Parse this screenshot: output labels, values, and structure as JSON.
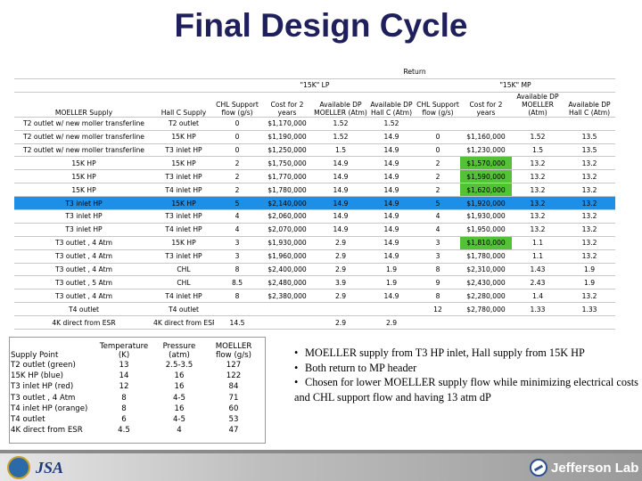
{
  "title": "Final Design Cycle",
  "table": {
    "return_label": "Return",
    "lp_label": "\"15K\" LP",
    "mp_label": "\"15K\" MP",
    "headers": [
      "MOELLER Supply",
      "Hall C Supply",
      "CHL Support flow (g/s)",
      "Cost for 2 years",
      "Available DP MOELLER (Atm)",
      "Available DP Hall C (Atm)",
      "CHL Support flow (g/s)",
      "Cost for 2 years",
      "Available DP MOELLER (Atm)",
      "Available DP Hall C (Atm)"
    ],
    "rows": [
      {
        "cells": [
          "T2 outlet w/ new moller transferline",
          "T2 outlet",
          "0",
          "$1,170,000",
          "1.52",
          "1.52",
          "",
          "",
          "",
          ""
        ]
      },
      {
        "cells": [
          "T2 outlet w/ new moller transferline",
          "15K HP",
          "0",
          "$1,190,000",
          "1.52",
          "14.9",
          "0",
          "$1,160,000",
          "1.52",
          "13.5"
        ]
      },
      {
        "cells": [
          "T2 outlet w/ new moller transferline",
          "T3 inlet HP",
          "0",
          "$1,250,000",
          "1.5",
          "14.9",
          "0",
          "$1,230,000",
          "1.5",
          "13.5"
        ]
      },
      {
        "cells": [
          "15K HP",
          "15K HP",
          "2",
          "$1,750,000",
          "14.9",
          "14.9",
          "2",
          "$1,570,000",
          "13.2",
          "13.2"
        ],
        "green": 7
      },
      {
        "cells": [
          "15K HP",
          "T3 inlet HP",
          "2",
          "$1,770,000",
          "14.9",
          "14.9",
          "2",
          "$1,590,000",
          "13.2",
          "13.2"
        ],
        "green": 7
      },
      {
        "cells": [
          "15K HP",
          "T4 inlet HP",
          "2",
          "$1,780,000",
          "14.9",
          "14.9",
          "2",
          "$1,620,000",
          "13.2",
          "13.2"
        ],
        "green": 7
      },
      {
        "cells": [
          "T3 inlet HP",
          "15K HP",
          "5",
          "$2,140,000",
          "14.9",
          "14.9",
          "5",
          "$1,920,000",
          "13.2",
          "13.2"
        ],
        "highlight": true,
        "green": 7
      },
      {
        "cells": [
          "T3 inlet HP",
          "T3 inlet HP",
          "4",
          "$2,060,000",
          "14.9",
          "14.9",
          "4",
          "$1,930,000",
          "13.2",
          "13.2"
        ]
      },
      {
        "cells": [
          "T3 inlet HP",
          "T4 inlet HP",
          "4",
          "$2,070,000",
          "14.9",
          "14.9",
          "4",
          "$1,950,000",
          "13.2",
          "13.2"
        ]
      },
      {
        "cells": [
          "T3 outlet , 4 Atm",
          "15K HP",
          "3",
          "$1,930,000",
          "2.9",
          "14.9",
          "3",
          "$1,810,000",
          "1.1",
          "13.2"
        ],
        "green": 7
      },
      {
        "cells": [
          "T3 outlet , 4 Atm",
          "T3 inlet HP",
          "3",
          "$1,960,000",
          "2.9",
          "14.9",
          "3",
          "$1,780,000",
          "1.1",
          "13.2"
        ]
      },
      {
        "cells": [
          "T3 outlet , 4 Atm",
          "CHL",
          "8",
          "$2,400,000",
          "2.9",
          "1.9",
          "8",
          "$2,310,000",
          "1.43",
          "1.9"
        ]
      },
      {
        "cells": [
          "T3 outlet , 5 Atm",
          "CHL",
          "8.5",
          "$2,480,000",
          "3.9",
          "1.9",
          "9",
          "$2,430,000",
          "2.43",
          "1.9"
        ]
      },
      {
        "cells": [
          "T3 outlet , 4 Atm",
          "T4 inlet HP",
          "8",
          "$2,380,000",
          "2.9",
          "14.9",
          "8",
          "$2,280,000",
          "1.4",
          "13.2"
        ]
      },
      {
        "cells": [
          "T4 outlet",
          "T4 outlet",
          "",
          "",
          "",
          "",
          "12",
          "$2,780,000",
          "1.33",
          "1.33"
        ]
      },
      {
        "cells": [
          "4K direct from ESR",
          "4K direct from ESR",
          "14.5",
          "",
          "2.9",
          "2.9",
          "",
          "",
          "",
          ""
        ]
      }
    ]
  },
  "supply_points": {
    "headers": [
      "Supply Point",
      "Temperature (K)",
      "Pressure (atm)",
      "MOELLER flow (g/s)"
    ],
    "rows": [
      [
        "T2 outlet (green)",
        "13",
        "2.5-3.5",
        "127"
      ],
      [
        "15K HP (blue)",
        "14",
        "16",
        "122"
      ],
      [
        "T3 inlet HP (red)",
        "12",
        "16",
        "84"
      ],
      [
        "T3 outlet , 4 Atm",
        "8",
        "4-5",
        "71"
      ],
      [
        "T4 inlet HP (orange)",
        "8",
        "16",
        "60"
      ],
      [
        "T4 outlet",
        "6",
        "4-5",
        "53"
      ],
      [
        "4K direct from ESR",
        "4.5",
        "4",
        "47"
      ]
    ]
  },
  "bullets": [
    "MOELLER supply from T3 HP inlet, Hall supply from 15K HP",
    "Both return to MP header",
    "Chosen for lower MOELLER supply flow while minimizing electrical costs and CHL support flow and having 13 atm dP"
  ],
  "footer": {
    "jsa_logo": "JSA",
    "jlab_logo": "Jefferson Lab"
  },
  "colors": {
    "title": "#1f1f5c",
    "highlight_row": "#1e8fe6",
    "green_cell": "#53c236"
  }
}
